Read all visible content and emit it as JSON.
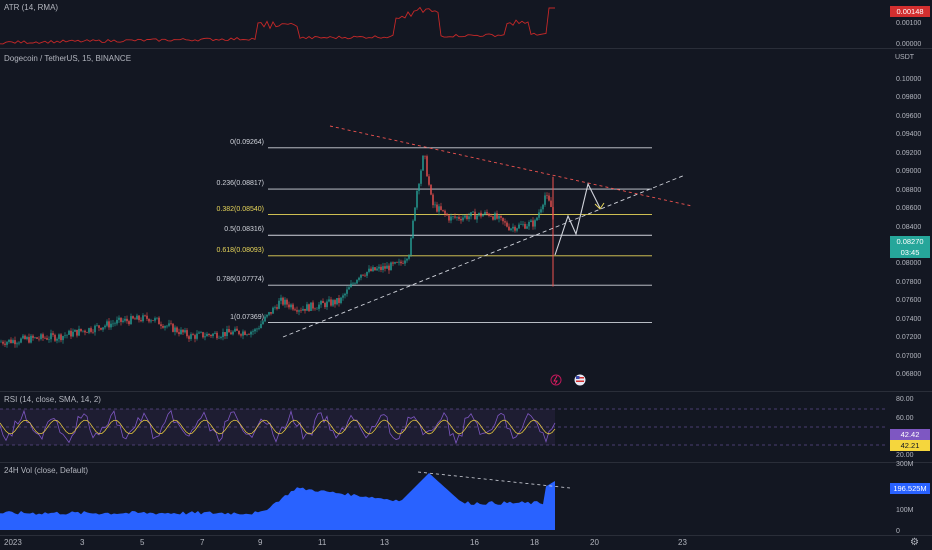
{
  "atr": {
    "legend": "ATR (14, RMA)",
    "value_tag": "0.00148",
    "axis": [
      "0.00100",
      "0.00000"
    ]
  },
  "main": {
    "legend": "Dogecoin / TetherUS, 15, BINANCE",
    "currency": "USDT",
    "price_axis": [
      "0.10000",
      "0.09800",
      "0.09600",
      "0.09400",
      "0.09200",
      "0.09000",
      "0.08800",
      "0.08600",
      "0.08400",
      "0.08000",
      "0.07800",
      "0.07600",
      "0.07400",
      "0.07200",
      "0.07000",
      "0.06800"
    ],
    "price_tag": "0.08270",
    "countdown": "03:45",
    "fib_levels": [
      {
        "label": "0(0.09264)",
        "price": 0.09264,
        "color": "#d1d4dc"
      },
      {
        "label": "0.236(0.08817)",
        "price": 0.08817,
        "color": "#d1d4dc"
      },
      {
        "label": "0.382(0.08540)",
        "price": 0.0854,
        "color": "#e8d65a"
      },
      {
        "label": "0.5(0.08316)",
        "price": 0.08316,
        "color": "#d1d4dc"
      },
      {
        "label": "0.618(0.08093)",
        "price": 0.08093,
        "color": "#e8d65a"
      },
      {
        "label": "0.786(0.07774)",
        "price": 0.07774,
        "color": "#d1d4dc"
      },
      {
        "label": "1(0.07369)",
        "price": 0.07369,
        "color": "#d1d4dc"
      }
    ],
    "icons": [
      "flash-icon",
      "us-flag-icon"
    ]
  },
  "rsi": {
    "legend": "RSI (14, close, SMA, 14, 2)",
    "axis": [
      "80.00",
      "60.00",
      "20.00"
    ],
    "rsi_tag": "42.42",
    "sma_tag": "42.21",
    "rsi_color": "#7e57c2",
    "sma_color": "#f5d63d"
  },
  "volume": {
    "legend": "24H Vol (close, Default)",
    "axis_top": "300M",
    "value_tag": "196.525M",
    "axis": [
      "100M",
      "0"
    ],
    "color": "#2962ff"
  },
  "time_axis": [
    "2023",
    "3",
    "5",
    "7",
    "9",
    "11",
    "13",
    "16",
    "18",
    "20",
    "23"
  ],
  "toolbar": {
    "settings_icon": "gear-icon"
  }
}
